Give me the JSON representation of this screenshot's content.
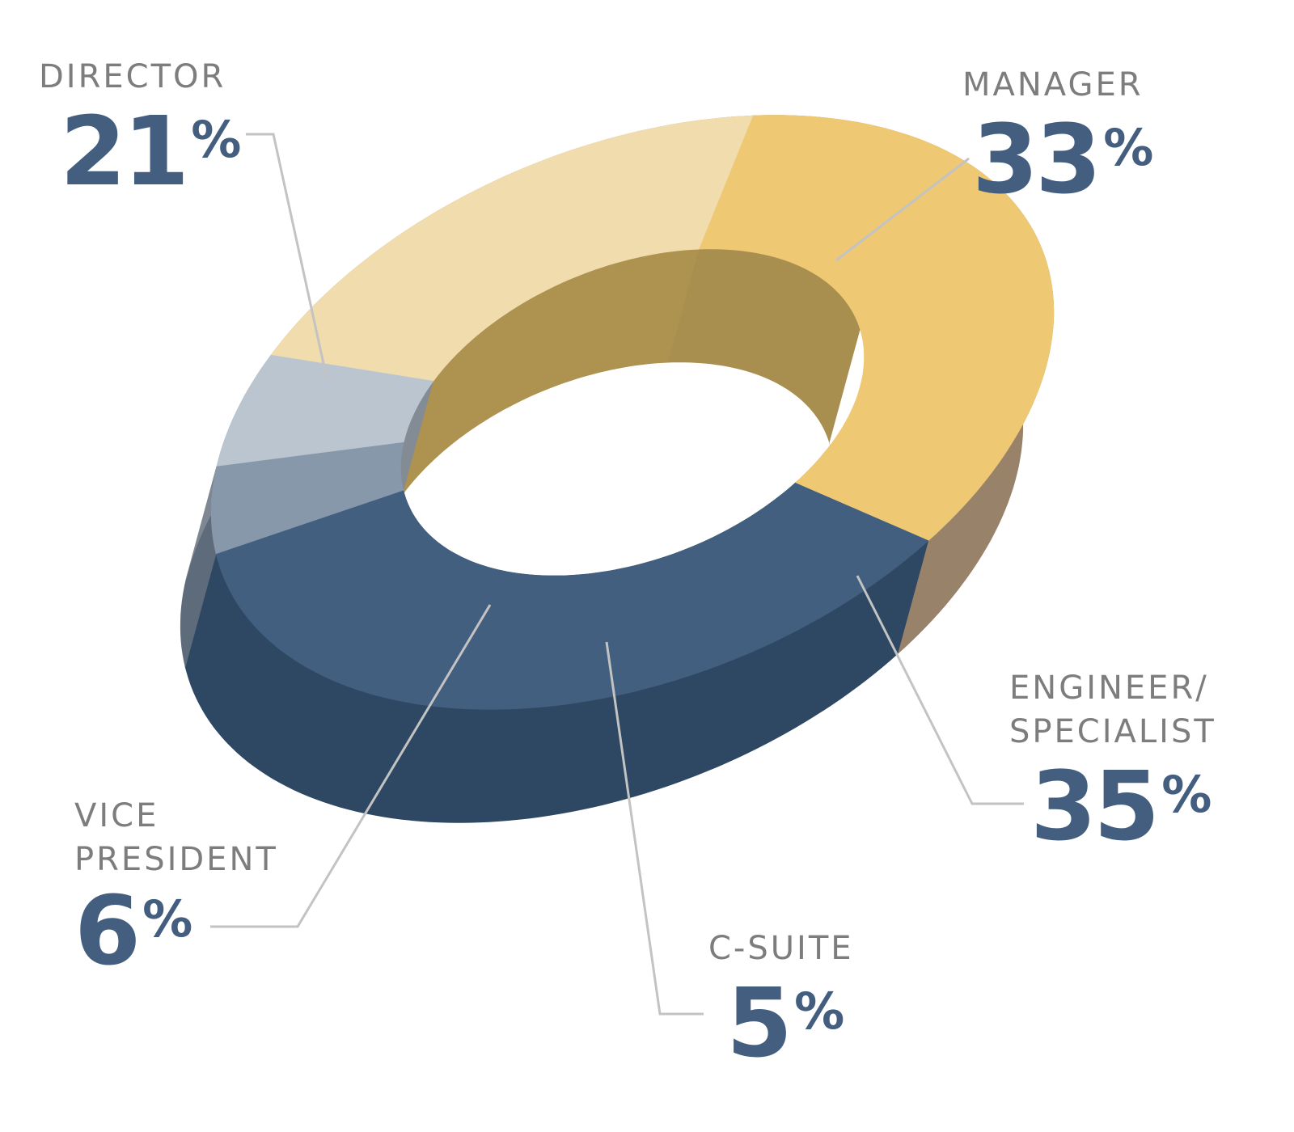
{
  "chart_data": {
    "type": "pie",
    "style": "3d-donut",
    "title": "",
    "slices": [
      {
        "key": "manager",
        "label_lines": [
          "MANAGER"
        ],
        "value": 33,
        "value_text": "33",
        "unit": "%",
        "top": "#eec872",
        "inner": "#a98f4f",
        "side": "#98826a"
      },
      {
        "key": "engineer",
        "label_lines": [
          "ENGINEER/",
          "SPECIALIST"
        ],
        "value": 35,
        "value_text": "35",
        "unit": "%",
        "top": "#425f7f",
        "inner": "#283e59",
        "side": "#2e4864"
      },
      {
        "key": "csuite",
        "label_lines": [
          "C-SUITE"
        ],
        "value": 5,
        "value_text": "5",
        "unit": "%",
        "top": "#8798ab",
        "inner": "#5d6b7b",
        "side": "#5d6b7b"
      },
      {
        "key": "vp",
        "label_lines": [
          "VICE",
          "PRESIDENT"
        ],
        "value": 6,
        "value_text": "6",
        "unit": "%",
        "top": "#bbc5cf",
        "inner": "#838b95",
        "side": "#7f8792"
      },
      {
        "key": "director",
        "label_lines": [
          "DIRECTOR"
        ],
        "value": 21,
        "value_text": "21",
        "unit": "%",
        "top": "#f0dcad",
        "inner": "#ad9250",
        "side": "#988b70"
      }
    ]
  }
}
